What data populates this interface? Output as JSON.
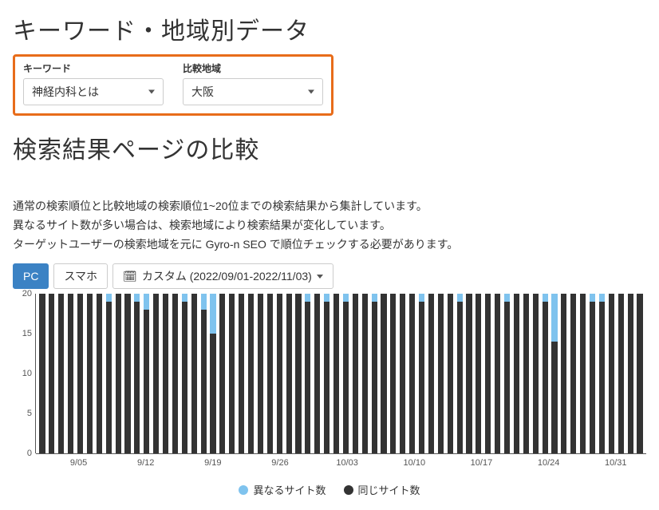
{
  "page": {
    "title1": "キーワード・地域別データ",
    "title2": "検索結果ページの比較"
  },
  "filters": {
    "keyword_label": "キーワード",
    "keyword_value": "神経内科とは",
    "region_label": "比較地域",
    "region_value": "大阪",
    "box_border_color": "#e86c1a"
  },
  "description": {
    "line1": "通常の検索順位と比較地域の検索順位1~20位までの検索結果から集計しています。",
    "line2": "異なるサイト数が多い場合は、検索地域により検索結果が変化しています。",
    "line3": "ターゲットユーザーの検索地域を元に Gyro-n SEO で順位チェックする必要があります。"
  },
  "toolbar": {
    "tab_pc": "PC",
    "tab_sp": "スマホ",
    "date_label": "カスタム (2022/09/01-2022/11/03)"
  },
  "chart": {
    "type": "stacked-bar",
    "y_max": 20,
    "y_ticks": [
      0,
      5,
      10,
      15,
      20
    ],
    "axis_fontsize": 11,
    "background_color": "#ffffff",
    "same_color": "#333333",
    "diff_color": "#7fc3ee",
    "x_ticks": [
      {
        "pos_pct": 7.0,
        "label": "9/05"
      },
      {
        "pos_pct": 18.0,
        "label": "9/12"
      },
      {
        "pos_pct": 29.0,
        "label": "9/19"
      },
      {
        "pos_pct": 40.0,
        "label": "9/26"
      },
      {
        "pos_pct": 51.0,
        "label": "10/03"
      },
      {
        "pos_pct": 62.0,
        "label": "10/10"
      },
      {
        "pos_pct": 73.0,
        "label": "10/17"
      },
      {
        "pos_pct": 84.0,
        "label": "10/24"
      },
      {
        "pos_pct": 95.0,
        "label": "10/31"
      }
    ],
    "data": [
      {
        "same": 20,
        "diff": 0
      },
      {
        "same": 20,
        "diff": 0
      },
      {
        "same": 20,
        "diff": 0
      },
      {
        "same": 20,
        "diff": 0
      },
      {
        "same": 20,
        "diff": 0
      },
      {
        "same": 20,
        "diff": 0
      },
      {
        "same": 20,
        "diff": 0
      },
      {
        "same": 19,
        "diff": 1
      },
      {
        "same": 20,
        "diff": 0
      },
      {
        "same": 20,
        "diff": 0
      },
      {
        "same": 19,
        "diff": 1
      },
      {
        "same": 18,
        "diff": 2
      },
      {
        "same": 20,
        "diff": 0
      },
      {
        "same": 20,
        "diff": 0
      },
      {
        "same": 20,
        "diff": 0
      },
      {
        "same": 19,
        "diff": 1
      },
      {
        "same": 20,
        "diff": 0
      },
      {
        "same": 18,
        "diff": 2
      },
      {
        "same": 15,
        "diff": 5
      },
      {
        "same": 20,
        "diff": 0
      },
      {
        "same": 20,
        "diff": 0
      },
      {
        "same": 20,
        "diff": 0
      },
      {
        "same": 20,
        "diff": 0
      },
      {
        "same": 20,
        "diff": 0
      },
      {
        "same": 20,
        "diff": 0
      },
      {
        "same": 20,
        "diff": 0
      },
      {
        "same": 20,
        "diff": 0
      },
      {
        "same": 20,
        "diff": 0
      },
      {
        "same": 19,
        "diff": 1
      },
      {
        "same": 20,
        "diff": 0
      },
      {
        "same": 19,
        "diff": 1
      },
      {
        "same": 20,
        "diff": 0
      },
      {
        "same": 19,
        "diff": 1
      },
      {
        "same": 20,
        "diff": 0
      },
      {
        "same": 20,
        "diff": 0
      },
      {
        "same": 19,
        "diff": 1
      },
      {
        "same": 20,
        "diff": 0
      },
      {
        "same": 20,
        "diff": 0
      },
      {
        "same": 20,
        "diff": 0
      },
      {
        "same": 20,
        "diff": 0
      },
      {
        "same": 19,
        "diff": 1
      },
      {
        "same": 20,
        "diff": 0
      },
      {
        "same": 20,
        "diff": 0
      },
      {
        "same": 20,
        "diff": 0
      },
      {
        "same": 19,
        "diff": 1
      },
      {
        "same": 20,
        "diff": 0
      },
      {
        "same": 20,
        "diff": 0
      },
      {
        "same": 20,
        "diff": 0
      },
      {
        "same": 20,
        "diff": 0
      },
      {
        "same": 19,
        "diff": 1
      },
      {
        "same": 20,
        "diff": 0
      },
      {
        "same": 20,
        "diff": 0
      },
      {
        "same": 20,
        "diff": 0
      },
      {
        "same": 19,
        "diff": 1
      },
      {
        "same": 14,
        "diff": 6
      },
      {
        "same": 20,
        "diff": 0
      },
      {
        "same": 20,
        "diff": 0
      },
      {
        "same": 20,
        "diff": 0
      },
      {
        "same": 19,
        "diff": 1
      },
      {
        "same": 19,
        "diff": 1
      },
      {
        "same": 20,
        "diff": 0
      },
      {
        "same": 20,
        "diff": 0
      },
      {
        "same": 20,
        "diff": 0
      },
      {
        "same": 20,
        "diff": 0
      }
    ]
  },
  "legend": {
    "diff_label": "異なるサイト数",
    "same_label": "同じサイト数"
  }
}
